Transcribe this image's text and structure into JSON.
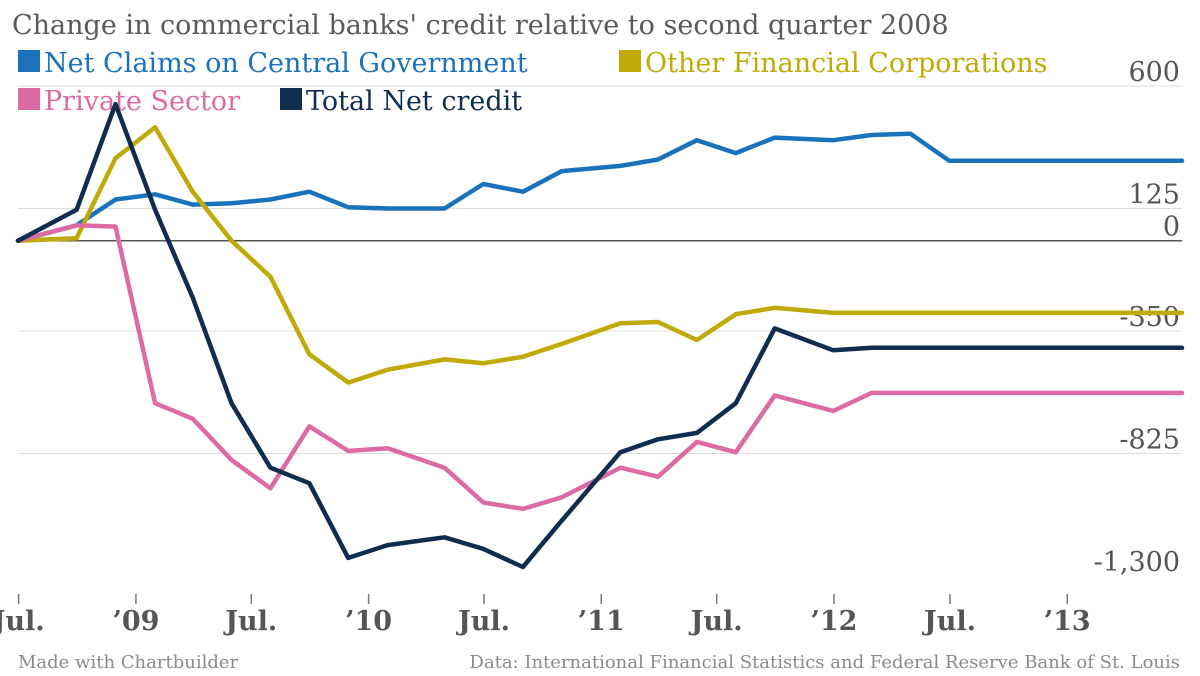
{
  "chart_data": {
    "type": "line",
    "title": "Change in commercial banks' credit relative to second quarter 2008",
    "xlabel": "",
    "ylabel": "",
    "ylim": [
      -1300,
      600
    ],
    "yticks": [
      600,
      125,
      0,
      -350,
      -825,
      -1300
    ],
    "ytick_labels": [
      "600",
      "125",
      "0",
      "-350",
      "-825",
      "-1,300"
    ],
    "x_start": "2008-06-30",
    "x_end": "2013-06-30",
    "xticks": [
      {
        "date": "2008-07-01",
        "label": "Jul."
      },
      {
        "date": "2009-01-01",
        "label": "’09"
      },
      {
        "date": "2009-07-01",
        "label": "Jul."
      },
      {
        "date": "2010-01-01",
        "label": "’10"
      },
      {
        "date": "2010-07-01",
        "label": "Jul."
      },
      {
        "date": "2011-01-01",
        "label": "’11"
      },
      {
        "date": "2011-07-01",
        "label": "Jul."
      },
      {
        "date": "2012-01-01",
        "label": "’12"
      },
      {
        "date": "2012-07-01",
        "label": "Jul."
      },
      {
        "date": "2013-01-01",
        "label": "’13"
      }
    ],
    "x": [
      "2008-06-30",
      "2008-09-30",
      "2008-11-30",
      "2009-01-31",
      "2009-03-31",
      "2009-05-31",
      "2009-07-31",
      "2009-09-30",
      "2009-11-30",
      "2010-01-31",
      "2010-04-30",
      "2010-06-30",
      "2010-08-31",
      "2010-10-31",
      "2011-01-31",
      "2011-03-31",
      "2011-05-31",
      "2011-07-31",
      "2011-09-30",
      "2011-12-31",
      "2012-02-29",
      "2012-04-30",
      "2012-06-30",
      "2012-08-31",
      "2012-10-31",
      "2012-12-31",
      "2013-02-28",
      "2013-04-30",
      "2013-06-30"
    ],
    "series": [
      {
        "name": "Net Claims on Central Government",
        "color": "#1a72bb",
        "values": [
          0,
          60,
          160,
          180,
          140,
          145,
          160,
          190,
          130,
          125,
          125,
          220,
          190,
          270,
          290,
          315,
          390,
          340,
          400,
          390,
          410,
          415,
          310,
          310,
          310,
          310,
          310,
          310,
          310
        ]
      },
      {
        "name": "Other Financial Corporations",
        "color": "#c0aa07",
        "values": [
          0,
          10,
          320,
          440,
          190,
          0,
          -140,
          -440,
          -550,
          -500,
          -460,
          -475,
          -450,
          -400,
          -320,
          -315,
          -385,
          -285,
          -260,
          -280,
          -280,
          -280,
          -280,
          -280,
          -280,
          -280,
          -280,
          -280,
          -280
        ]
      },
      {
        "name": "Private Sector",
        "color": "#dc6aa3",
        "values": [
          0,
          60,
          55,
          -630,
          -690,
          -850,
          -960,
          -720,
          -815,
          -805,
          -880,
          -1015,
          -1040,
          -995,
          -880,
          -915,
          -780,
          -820,
          -600,
          -660,
          -590,
          -590,
          -590,
          -590,
          -590,
          -590,
          -590,
          -590,
          -590
        ]
      },
      {
        "name": "Total Net credit",
        "color": "#0f2d4f",
        "values": [
          0,
          120,
          530,
          120,
          -220,
          -630,
          -880,
          -940,
          -1230,
          -1180,
          -1150,
          -1195,
          -1265,
          -1085,
          -820,
          -770,
          -745,
          -630,
          -340,
          -425,
          -415,
          -415,
          -415,
          -415,
          -415,
          -415,
          -415,
          -415,
          -415
        ]
      }
    ]
  },
  "footer": {
    "made_with": "Made with Chartbuilder",
    "source": "Data: International Financial Statistics and Federal Reserve Bank of St. Louis"
  }
}
